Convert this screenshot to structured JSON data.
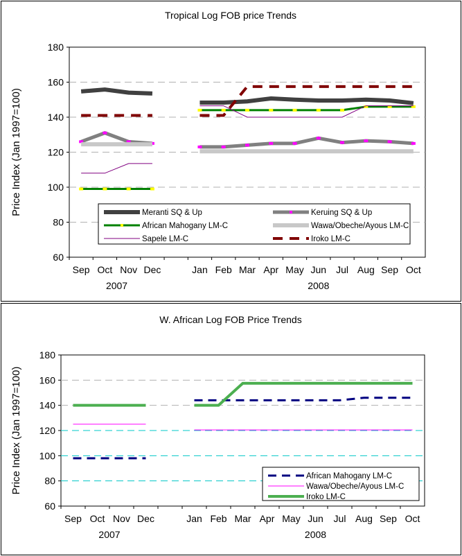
{
  "chart_data": [
    {
      "type": "line",
      "title": "Tropical Log FOB price Trends",
      "ylabel": "Price Index (Jan 1997=100)",
      "ylim": [
        60,
        180
      ],
      "yticks": [
        60,
        80,
        100,
        120,
        140,
        160,
        180
      ],
      "grid": "horizontal dashed",
      "categories": [
        "Sep",
        "Oct",
        "Nov",
        "Dec",
        "",
        "Jan",
        "Feb",
        "Mar",
        "Apr",
        "May",
        "Jun",
        "Jul",
        "Aug",
        "Sep",
        "Oct"
      ],
      "year_labels": [
        "2007",
        "2008"
      ],
      "legend_placement": "bottom-inside",
      "series": [
        {
          "name": "Meranti SQ & Up",
          "color": "#404040",
          "values": [
            154.7,
            155.8,
            154,
            153.5,
            null,
            148.3,
            148.3,
            149,
            150.7,
            150,
            149.5,
            149.5,
            150,
            149.5,
            148
          ]
        },
        {
          "name": "Keruing SQ & Up",
          "color": "#808080",
          "marker": "#ff00ff",
          "values": [
            126,
            131,
            126,
            125,
            null,
            123,
            123,
            124,
            125,
            125,
            128,
            125.5,
            126.5,
            126,
            125
          ]
        },
        {
          "name": "African Mahogany LM-C",
          "color": "#008000",
          "marker": "#ffff00",
          "values": [
            99,
            99,
            99,
            99,
            null,
            144,
            144,
            144,
            144,
            144,
            144,
            144,
            146,
            146,
            146
          ]
        },
        {
          "name": "Wawa/Obeche/Ayous LM-C",
          "color": "#c8c8c8",
          "values": [
            124.5,
            124.5,
            124.5,
            124.5,
            null,
            120.5,
            120.5,
            120.5,
            120.5,
            120.5,
            120.5,
            120.5,
            120.5,
            120.5,
            120.5
          ]
        },
        {
          "name": "Sapele LM-C",
          "color": "#800080",
          "values": [
            108,
            108,
            113.5,
            113.5,
            null,
            146.5,
            146.5,
            140,
            140,
            140,
            140,
            140,
            146.5,
            146.5,
            146.5
          ]
        },
        {
          "name": "Iroko LM-C",
          "color": "#800000",
          "dash": true,
          "values": [
            141,
            141,
            141,
            141,
            null,
            141,
            141,
            157.5,
            157.5,
            157.5,
            157.5,
            157.5,
            157.5,
            157.5,
            157.5
          ]
        }
      ]
    },
    {
      "type": "line",
      "title": "W. African Log FOB Price Trends",
      "ylabel": "Price Index (Jan 1997=100)",
      "ylim": [
        60,
        180
      ],
      "yticks": [
        60,
        80,
        100,
        120,
        140,
        160,
        180
      ],
      "grid": "horizontal dashed",
      "categories": [
        "Sep",
        "Oct",
        "Nov",
        "Dec",
        "",
        "Jan",
        "Feb",
        "Mar",
        "Apr",
        "May",
        "Jun",
        "Jul",
        "Aug",
        "Sep",
        "Oct"
      ],
      "year_labels": [
        "2007",
        "2008"
      ],
      "legend_placement": "bottom-right-inside",
      "series": [
        {
          "name": "African Mahogany LM-C",
          "color": "#000080",
          "dash": true,
          "values": [
            98,
            98,
            98,
            98,
            null,
            144,
            144,
            144,
            144,
            144,
            144,
            144,
            146,
            146,
            146
          ]
        },
        {
          "name": "Wawa/Obeche/Ayous LM-C",
          "color": "#ff00ff",
          "values": [
            125,
            125,
            125,
            125,
            null,
            120.5,
            120.5,
            120.5,
            120.5,
            120.5,
            120.5,
            120.5,
            120.5,
            120.5,
            120.5
          ]
        },
        {
          "name": "Iroko LM-C",
          "color": "#4caf50",
          "values": [
            140,
            140,
            140,
            140,
            null,
            140,
            140,
            157.5,
            157.5,
            157.5,
            157.5,
            157.5,
            157.5,
            157.5,
            157.5
          ]
        }
      ]
    }
  ]
}
